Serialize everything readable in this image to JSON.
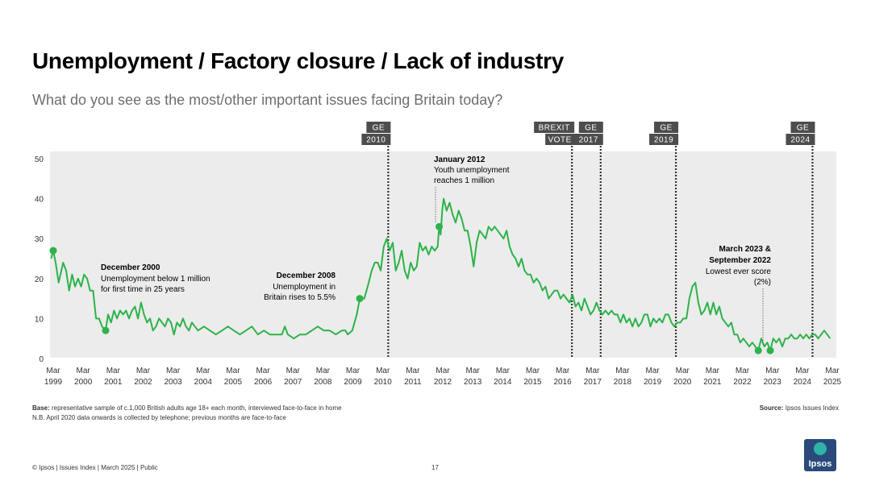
{
  "title": "Unemployment / Factory closure / Lack of industry",
  "subtitle": "What do you see as the most/other important issues facing Britain today?",
  "footnote": {
    "base_label": "Base:",
    "base_text": " representative sample of c.1,000 British adults age 18+ each month, interviewed face-to-face in home",
    "nb_text": "N.B. April 2020 data onwards is collected by telephone; previous months are face-to-face"
  },
  "source": {
    "label": "Source:",
    "text": " Ipsos Issues Index"
  },
  "footer": "© Ipsos | Issues Index | March 2025 | Public",
  "page_number": "17",
  "logo_text": "Ipsos",
  "colors": {
    "line": "#2db34a",
    "panel": "#ececec",
    "event_tag": "#4d4d4d",
    "event_line": "#333333"
  },
  "chart_data": {
    "type": "line",
    "title": "Unemployment / Factory closure / Lack of industry",
    "xlabel": "",
    "ylabel": "",
    "ylim": [
      0,
      50
    ],
    "xlim": [
      1999.17,
      2025.17
    ],
    "yticks": [
      0,
      10,
      20,
      30,
      40,
      50
    ],
    "xtick_labels": [
      {
        "x": 1999.17,
        "top": "Mar",
        "bottom": "1999"
      },
      {
        "x": 2000.17,
        "top": "Mar",
        "bottom": "2000"
      },
      {
        "x": 2001.17,
        "top": "Mar",
        "bottom": "2001"
      },
      {
        "x": 2002.17,
        "top": "Mar",
        "bottom": "2002"
      },
      {
        "x": 2003.17,
        "top": "Mar",
        "bottom": "2003"
      },
      {
        "x": 2004.17,
        "top": "Mar",
        "bottom": "2004"
      },
      {
        "x": 2005.17,
        "top": "Mar",
        "bottom": "2005"
      },
      {
        "x": 2006.17,
        "top": "Mar",
        "bottom": "2006"
      },
      {
        "x": 2007.17,
        "top": "Mar",
        "bottom": "2007"
      },
      {
        "x": 2008.17,
        "top": "Mar",
        "bottom": "2008"
      },
      {
        "x": 2009.17,
        "top": "Mar",
        "bottom": "2009"
      },
      {
        "x": 2010.17,
        "top": "Mar",
        "bottom": "2010"
      },
      {
        "x": 2011.17,
        "top": "Mar",
        "bottom": "2011"
      },
      {
        "x": 2012.17,
        "top": "Mar",
        "bottom": "2012"
      },
      {
        "x": 2013.17,
        "top": "Mar",
        "bottom": "2013"
      },
      {
        "x": 2014.17,
        "top": "Mar",
        "bottom": "2014"
      },
      {
        "x": 2015.17,
        "top": "Mar",
        "bottom": "2015"
      },
      {
        "x": 2016.17,
        "top": "Mar",
        "bottom": "2016"
      },
      {
        "x": 2017.17,
        "top": "Mar",
        "bottom": "2017"
      },
      {
        "x": 2018.17,
        "top": "Mar",
        "bottom": "2018"
      },
      {
        "x": 2019.17,
        "top": "Mar",
        "bottom": "2019"
      },
      {
        "x": 2020.17,
        "top": "Mar",
        "bottom": "2020"
      },
      {
        "x": 2021.17,
        "top": "Mar",
        "bottom": "2021"
      },
      {
        "x": 2022.17,
        "top": "Mar",
        "bottom": "2022"
      },
      {
        "x": 2023.17,
        "top": "Mar",
        "bottom": "2023"
      },
      {
        "x": 2024.17,
        "top": "Mar",
        "bottom": "2024"
      },
      {
        "x": 2025.17,
        "top": "Mar",
        "bottom": "2025"
      }
    ],
    "series": [
      {
        "name": "Unemployment / Factory closure / Lack of industry",
        "points": [
          [
            1999.1,
            25
          ],
          [
            1999.17,
            27
          ],
          [
            1999.25,
            24
          ],
          [
            1999.35,
            19
          ],
          [
            1999.5,
            24
          ],
          [
            1999.6,
            22
          ],
          [
            1999.7,
            17
          ],
          [
            1999.8,
            21
          ],
          [
            1999.9,
            18
          ],
          [
            2000.0,
            20
          ],
          [
            2000.1,
            18
          ],
          [
            2000.2,
            21
          ],
          [
            2000.3,
            20
          ],
          [
            2000.4,
            17
          ],
          [
            2000.5,
            17
          ],
          [
            2000.6,
            10
          ],
          [
            2000.7,
            10
          ],
          [
            2000.8,
            8
          ],
          [
            2000.92,
            7
          ],
          [
            2001.0,
            11
          ],
          [
            2001.1,
            9
          ],
          [
            2001.2,
            12
          ],
          [
            2001.3,
            10
          ],
          [
            2001.4,
            12
          ],
          [
            2001.5,
            11
          ],
          [
            2001.6,
            12
          ],
          [
            2001.7,
            10
          ],
          [
            2001.8,
            12
          ],
          [
            2001.9,
            13
          ],
          [
            2002.0,
            10
          ],
          [
            2002.1,
            14
          ],
          [
            2002.2,
            11
          ],
          [
            2002.3,
            9
          ],
          [
            2002.4,
            10
          ],
          [
            2002.5,
            7
          ],
          [
            2002.6,
            8
          ],
          [
            2002.7,
            10
          ],
          [
            2002.8,
            9
          ],
          [
            2002.9,
            8
          ],
          [
            2003.0,
            10
          ],
          [
            2003.1,
            9
          ],
          [
            2003.2,
            6
          ],
          [
            2003.3,
            9
          ],
          [
            2003.4,
            8
          ],
          [
            2003.5,
            10
          ],
          [
            2003.6,
            8
          ],
          [
            2003.7,
            7
          ],
          [
            2003.8,
            9
          ],
          [
            2003.9,
            8
          ],
          [
            2004.0,
            7
          ],
          [
            2004.2,
            8
          ],
          [
            2004.4,
            7
          ],
          [
            2004.6,
            6
          ],
          [
            2004.8,
            7
          ],
          [
            2005.0,
            8
          ],
          [
            2005.2,
            7
          ],
          [
            2005.4,
            6
          ],
          [
            2005.6,
            7
          ],
          [
            2005.8,
            8
          ],
          [
            2006.0,
            6
          ],
          [
            2006.2,
            7
          ],
          [
            2006.4,
            6
          ],
          [
            2006.6,
            6
          ],
          [
            2006.8,
            6
          ],
          [
            2006.9,
            8
          ],
          [
            2007.0,
            6
          ],
          [
            2007.2,
            5
          ],
          [
            2007.4,
            6
          ],
          [
            2007.6,
            6
          ],
          [
            2007.8,
            7
          ],
          [
            2008.0,
            8
          ],
          [
            2008.2,
            7
          ],
          [
            2008.4,
            7
          ],
          [
            2008.6,
            6
          ],
          [
            2008.8,
            7
          ],
          [
            2008.92,
            7
          ],
          [
            2009.0,
            6
          ],
          [
            2009.15,
            7
          ],
          [
            2009.3,
            11
          ],
          [
            2009.4,
            15
          ],
          [
            2009.55,
            15
          ],
          [
            2009.7,
            19
          ],
          [
            2009.8,
            22
          ],
          [
            2009.9,
            24
          ],
          [
            2010.0,
            24
          ],
          [
            2010.1,
            22
          ],
          [
            2010.2,
            28
          ],
          [
            2010.3,
            30
          ],
          [
            2010.4,
            27
          ],
          [
            2010.5,
            29
          ],
          [
            2010.6,
            22
          ],
          [
            2010.7,
            24
          ],
          [
            2010.8,
            27
          ],
          [
            2010.9,
            22
          ],
          [
            2011.0,
            20
          ],
          [
            2011.1,
            24
          ],
          [
            2011.2,
            22
          ],
          [
            2011.3,
            23
          ],
          [
            2011.4,
            29
          ],
          [
            2011.5,
            27
          ],
          [
            2011.6,
            28
          ],
          [
            2011.7,
            26
          ],
          [
            2011.8,
            28
          ],
          [
            2011.9,
            27
          ],
          [
            2012.0,
            28
          ],
          [
            2012.05,
            33
          ],
          [
            2012.1,
            31
          ],
          [
            2012.15,
            37
          ],
          [
            2012.2,
            40
          ],
          [
            2012.3,
            37
          ],
          [
            2012.4,
            39
          ],
          [
            2012.5,
            36
          ],
          [
            2012.6,
            34
          ],
          [
            2012.7,
            37
          ],
          [
            2012.8,
            35
          ],
          [
            2012.9,
            32
          ],
          [
            2013.0,
            32
          ],
          [
            2013.1,
            28
          ],
          [
            2013.2,
            23
          ],
          [
            2013.3,
            29
          ],
          [
            2013.4,
            32
          ],
          [
            2013.5,
            31
          ],
          [
            2013.6,
            30
          ],
          [
            2013.7,
            33
          ],
          [
            2013.8,
            32
          ],
          [
            2013.9,
            33
          ],
          [
            2014.0,
            32
          ],
          [
            2014.1,
            31
          ],
          [
            2014.2,
            30
          ],
          [
            2014.3,
            32
          ],
          [
            2014.4,
            28
          ],
          [
            2014.5,
            26
          ],
          [
            2014.6,
            25
          ],
          [
            2014.7,
            23
          ],
          [
            2014.8,
            25
          ],
          [
            2014.9,
            22
          ],
          [
            2015.0,
            21
          ],
          [
            2015.1,
            21
          ],
          [
            2015.2,
            19
          ],
          [
            2015.3,
            20
          ],
          [
            2015.4,
            19
          ],
          [
            2015.5,
            17
          ],
          [
            2015.6,
            18
          ],
          [
            2015.7,
            15
          ],
          [
            2015.8,
            16
          ],
          [
            2015.9,
            17
          ],
          [
            2016.0,
            17
          ],
          [
            2016.1,
            15
          ],
          [
            2016.2,
            16
          ],
          [
            2016.3,
            15
          ],
          [
            2016.4,
            14
          ],
          [
            2016.5,
            16
          ],
          [
            2016.6,
            13
          ],
          [
            2016.7,
            14
          ],
          [
            2016.8,
            12
          ],
          [
            2016.9,
            15
          ],
          [
            2017.0,
            13
          ],
          [
            2017.1,
            11
          ],
          [
            2017.2,
            12
          ],
          [
            2017.3,
            14
          ],
          [
            2017.4,
            12
          ],
          [
            2017.5,
            11
          ],
          [
            2017.6,
            12
          ],
          [
            2017.7,
            11
          ],
          [
            2017.8,
            12
          ],
          [
            2017.9,
            11
          ],
          [
            2018.0,
            11
          ],
          [
            2018.1,
            9
          ],
          [
            2018.2,
            11
          ],
          [
            2018.3,
            9
          ],
          [
            2018.4,
            10
          ],
          [
            2018.5,
            8
          ],
          [
            2018.6,
            10
          ],
          [
            2018.7,
            8
          ],
          [
            2018.8,
            9
          ],
          [
            2018.9,
            11
          ],
          [
            2019.0,
            11
          ],
          [
            2019.1,
            8
          ],
          [
            2019.2,
            10
          ],
          [
            2019.3,
            9
          ],
          [
            2019.4,
            10
          ],
          [
            2019.5,
            9
          ],
          [
            2019.6,
            11
          ],
          [
            2019.7,
            11
          ],
          [
            2019.8,
            9
          ],
          [
            2019.9,
            8
          ],
          [
            2020.0,
            9
          ],
          [
            2020.1,
            9
          ],
          [
            2020.2,
            10
          ],
          [
            2020.3,
            10
          ],
          [
            2020.4,
            15
          ],
          [
            2020.5,
            18
          ],
          [
            2020.6,
            19
          ],
          [
            2020.7,
            14
          ],
          [
            2020.8,
            11
          ],
          [
            2020.9,
            12
          ],
          [
            2021.0,
            14
          ],
          [
            2021.1,
            11
          ],
          [
            2021.2,
            14
          ],
          [
            2021.3,
            11
          ],
          [
            2021.4,
            13
          ],
          [
            2021.5,
            10
          ],
          [
            2021.6,
            9
          ],
          [
            2021.7,
            8
          ],
          [
            2021.8,
            9
          ],
          [
            2021.9,
            6
          ],
          [
            2022.0,
            6
          ],
          [
            2022.1,
            4
          ],
          [
            2022.2,
            5
          ],
          [
            2022.3,
            4
          ],
          [
            2022.4,
            3
          ],
          [
            2022.5,
            4
          ],
          [
            2022.6,
            3
          ],
          [
            2022.7,
            2
          ],
          [
            2022.8,
            5
          ],
          [
            2022.9,
            3
          ],
          [
            2023.0,
            4
          ],
          [
            2023.1,
            2
          ],
          [
            2023.2,
            5
          ],
          [
            2023.3,
            4
          ],
          [
            2023.4,
            5
          ],
          [
            2023.5,
            3
          ],
          [
            2023.6,
            5
          ],
          [
            2023.7,
            5
          ],
          [
            2023.8,
            6
          ],
          [
            2023.9,
            5
          ],
          [
            2024.0,
            5
          ],
          [
            2024.1,
            6
          ],
          [
            2024.2,
            5
          ],
          [
            2024.3,
            6
          ],
          [
            2024.4,
            5
          ],
          [
            2024.5,
            6
          ],
          [
            2024.6,
            6
          ],
          [
            2024.7,
            5
          ],
          [
            2024.8,
            6
          ],
          [
            2024.9,
            7
          ],
          [
            2025.0,
            6
          ],
          [
            2025.1,
            5
          ]
        ]
      }
    ],
    "events": [
      {
        "x": 2010.35,
        "lines": [
          "GE",
          "2010"
        ]
      },
      {
        "x": 2016.48,
        "lines": [
          "BREXIT",
          "VOTE"
        ]
      },
      {
        "x": 2017.44,
        "lines": [
          "GE",
          "2017"
        ]
      },
      {
        "x": 2019.95,
        "lines": [
          "GE",
          "2019"
        ]
      },
      {
        "x": 2024.51,
        "lines": [
          "GE",
          "2024"
        ]
      }
    ],
    "highlight_points": [
      {
        "x": 1999.17,
        "y": 27
      },
      {
        "x": 2000.92,
        "y": 7
      },
      {
        "x": 2009.4,
        "y": 15
      },
      {
        "x": 2012.05,
        "y": 33
      },
      {
        "x": 2022.7,
        "y": 2
      },
      {
        "x": 2023.1,
        "y": 2
      }
    ],
    "annotations": [
      {
        "title": "December 2000",
        "lines": [
          "Unemployment below 1 million",
          "for first time in 25 years"
        ],
        "align": "left"
      },
      {
        "title": "December 2008",
        "lines": [
          "Unemployment in",
          "Britain rises to 5.5%"
        ],
        "align": "right"
      },
      {
        "title": "January 2012",
        "lines": [
          "Youth unemployment",
          "reaches 1 million"
        ],
        "align": "left"
      },
      {
        "title": "March 2023 &",
        "title2": "September 2022",
        "lines": [
          "Lowest ever score",
          "(2%)"
        ],
        "align": "right"
      }
    ]
  }
}
